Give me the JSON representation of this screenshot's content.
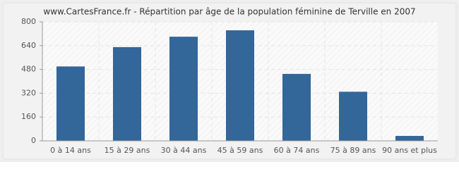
{
  "chart_data": {
    "type": "bar",
    "title": "www.CartesFrance.fr - Répartition par âge de la population féminine de Terville en 2007",
    "categories": [
      "0 à 14 ans",
      "15 à 29 ans",
      "30 à 44 ans",
      "45 à 59 ans",
      "60 à 74 ans",
      "75 à 89 ans",
      "90 ans et plus"
    ],
    "values": [
      500,
      630,
      700,
      743,
      450,
      330,
      33
    ],
    "color": "#336699",
    "ylim": [
      0,
      800
    ],
    "yticks": [
      0,
      160,
      320,
      480,
      640,
      800
    ],
    "grid": true
  }
}
